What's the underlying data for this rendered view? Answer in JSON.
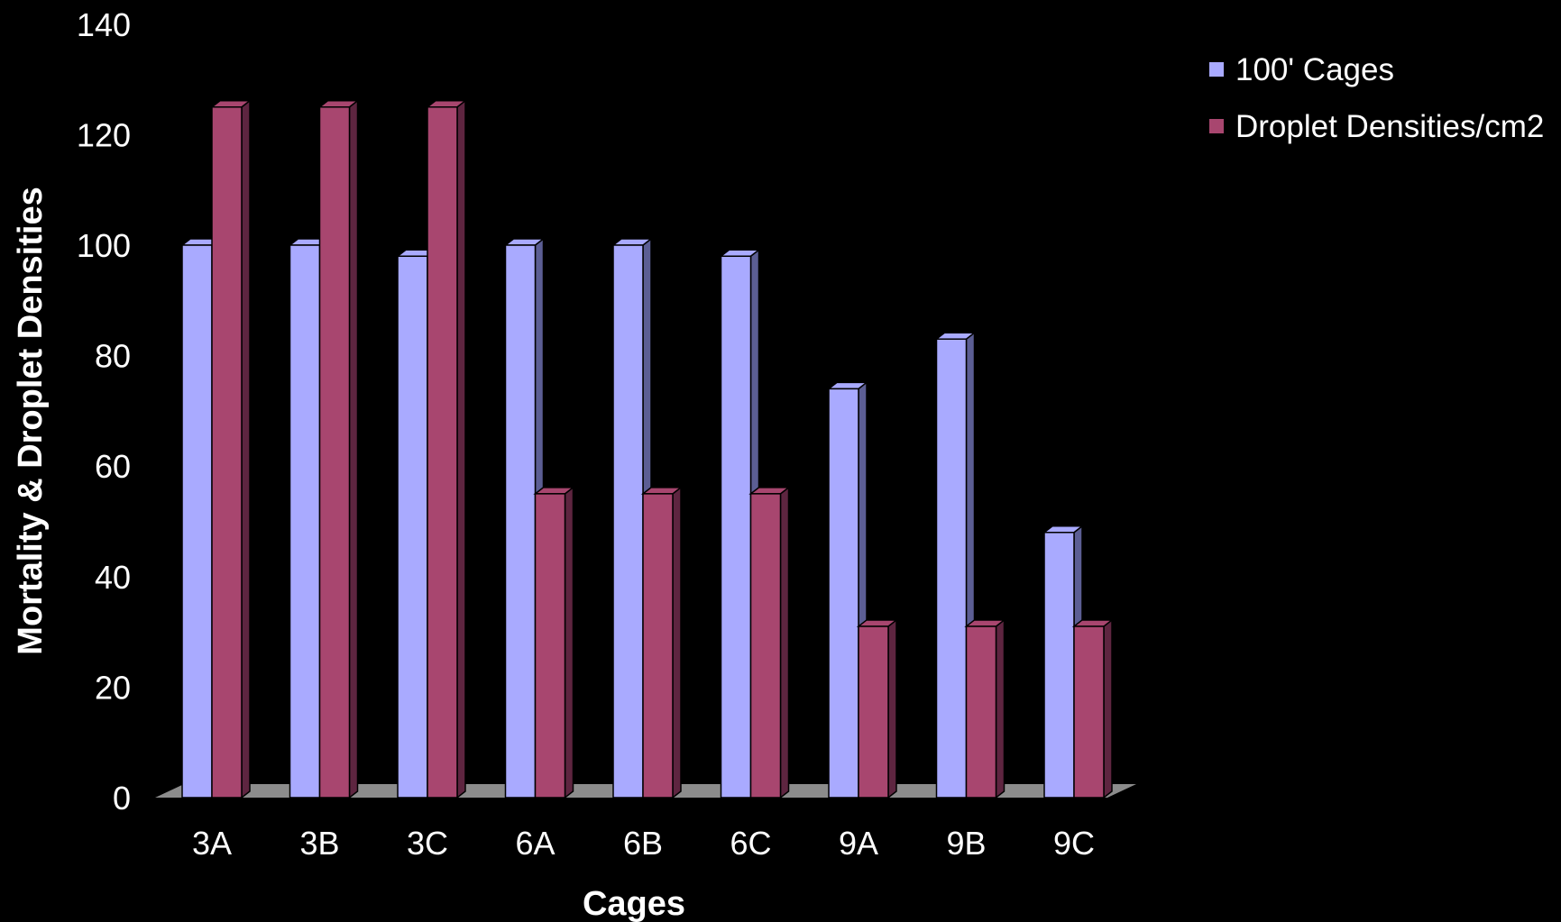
{
  "chart_data": {
    "type": "bar",
    "title": "",
    "xlabel": "Cages",
    "ylabel": "Mortality & Droplet Densities",
    "ylim": [
      0,
      140
    ],
    "yticks": [
      0,
      20,
      40,
      60,
      80,
      100,
      120,
      140
    ],
    "categories": [
      "3A",
      "3B",
      "3C",
      "6A",
      "6B",
      "6C",
      "9A",
      "9B",
      "9C"
    ],
    "series": [
      {
        "name": "100' Cages",
        "values": [
          100,
          100,
          98,
          100,
          100,
          98,
          74,
          83,
          48
        ],
        "color": "#A9AAFF",
        "side_color": "#5C5E94"
      },
      {
        "name": "Droplet Densities/cm2",
        "values": [
          125,
          125,
          125,
          55,
          55,
          55,
          31,
          31,
          31
        ],
        "color": "#A8466F",
        "side_color": "#5E2540"
      }
    ],
    "legend_position": "top-right",
    "grid": false,
    "background": "#000000",
    "floor_color": "#8C8C8C"
  }
}
